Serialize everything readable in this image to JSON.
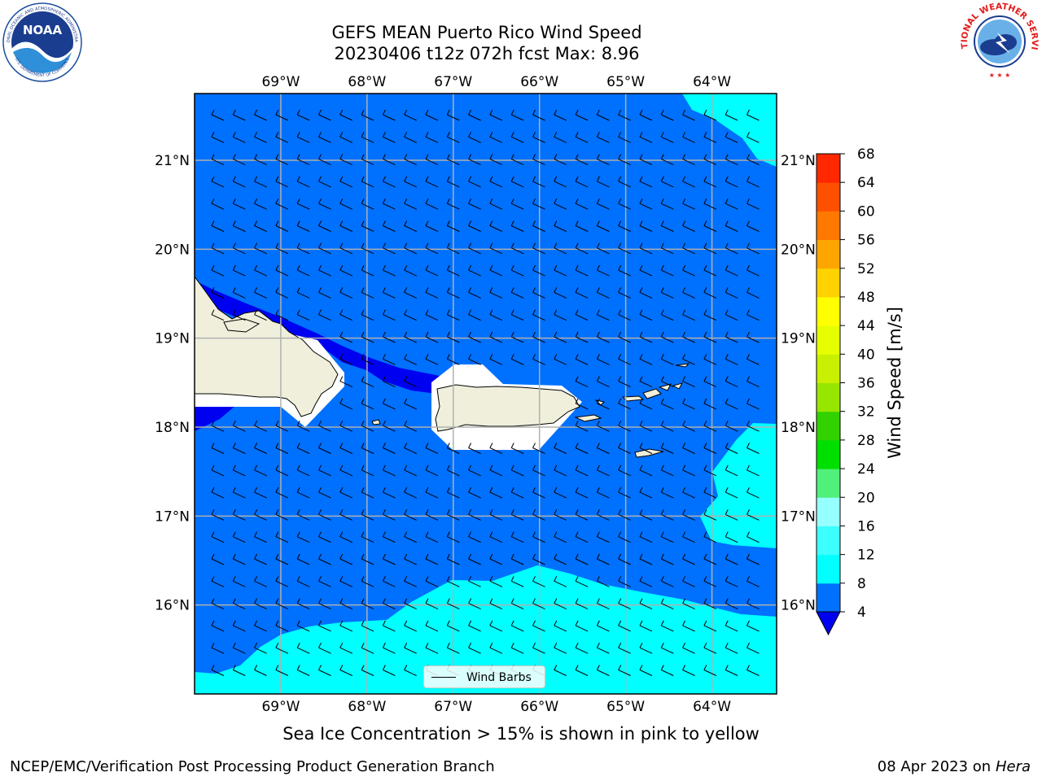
{
  "title": {
    "line1": "GEFS MEAN Puerto Rico Wind Speed",
    "line2": "20230406 t12z 072h fcst   Max: 8.96"
  },
  "logos": {
    "left": "noaa-logo",
    "right": "nws-logo",
    "left_ring_text": "NATIONAL OCEANIC AND ATMOSPHERIC ADMINISTRATION",
    "left_bottom_text": "U.S. DEPARTMENT OF COMMERCE",
    "left_center_text": "NOAA",
    "right_ring_text": "NATIONAL WEATHER SERVICE"
  },
  "map": {
    "lon_labels": [
      "69°W",
      "68°W",
      "67°W",
      "66°W",
      "65°W",
      "64°W"
    ],
    "lat_labels": [
      "21°N",
      "20°N",
      "19°N",
      "18°N",
      "17°N",
      "16°N"
    ],
    "lon_values": [
      -69,
      -68,
      -67,
      -66,
      -65,
      -64
    ],
    "lat_values": [
      21,
      20,
      19,
      18,
      17,
      16
    ],
    "lon_range": [
      -70.0,
      -63.25
    ],
    "lat_range": [
      15.0,
      21.75
    ],
    "ocean_color": "#0070ff",
    "land_color": "#efefdc",
    "grid": true
  },
  "chart_data": {
    "type": "heatmap",
    "variable": "Wind Speed",
    "units": "m/s",
    "max": 8.96,
    "colorbar": {
      "label": "Wind Speed [m/s]",
      "levels": [
        4,
        8,
        12,
        16,
        20,
        24,
        28,
        32,
        36,
        40,
        44,
        48,
        52,
        56,
        60,
        64,
        68
      ],
      "colors": [
        "#0070ff",
        "#00ffff",
        "#3cffff",
        "#96ffff",
        "#50f07a",
        "#00e000",
        "#32d200",
        "#96e600",
        "#c8f000",
        "#e6ff00",
        "#ffff00",
        "#ffd200",
        "#ffa500",
        "#ff7800",
        "#ff5000",
        "#ff2800"
      ],
      "extend_min_color": "#0000f0"
    }
  },
  "legend": {
    "label": "Wind Barbs"
  },
  "note": "Sea Ice Concentration > 15% is shown in pink to yellow",
  "footer": {
    "left": "NCEP/EMC/Verification Post Processing Product Generation Branch",
    "right_prefix": "08 Apr 2023 on ",
    "right_machine": "Hera"
  }
}
